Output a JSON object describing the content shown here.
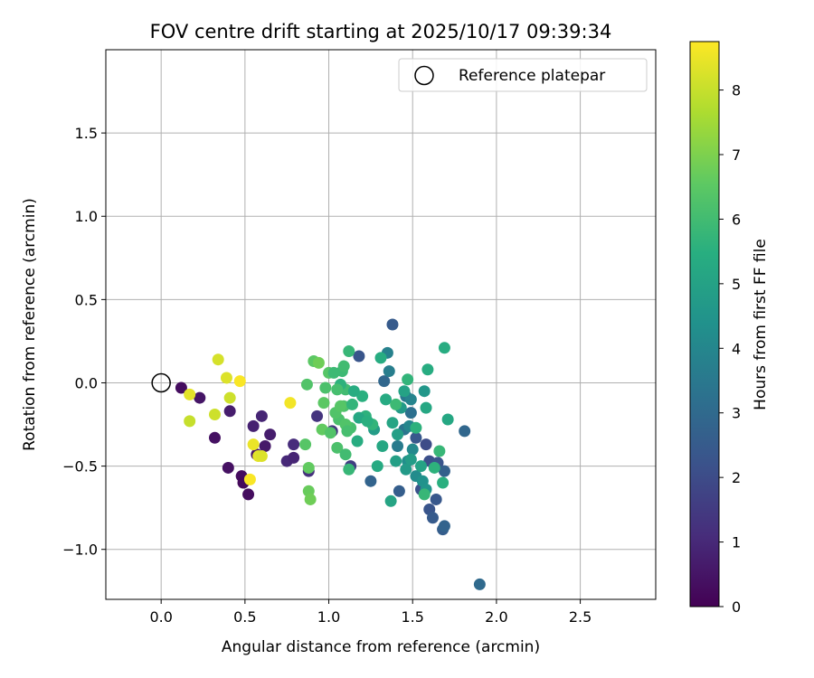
{
  "chart_data": {
    "type": "scatter",
    "title": "FOV centre drift starting at 2025/10/17 09:39:34",
    "xlabel": "Angular distance from reference (arcmin)",
    "ylabel": "Rotation from reference (arcmin)",
    "xlim": [
      -0.33,
      2.95
    ],
    "ylim": [
      -1.3,
      2.0
    ],
    "x_ticks": [
      0.0,
      0.5,
      1.0,
      1.5,
      2.0,
      2.5
    ],
    "x_tick_labels": [
      "0.0",
      "0.5",
      "1.0",
      "1.5",
      "2.0",
      "2.5"
    ],
    "y_ticks": [
      -1.0,
      -0.5,
      0.0,
      0.5,
      1.0,
      1.5
    ],
    "y_tick_labels": [
      "−1.0",
      "−0.5",
      "0.0",
      "0.5",
      "1.0",
      "1.5"
    ],
    "grid": true,
    "legend": {
      "position": "top-right",
      "entries": [
        "Reference platepar"
      ]
    },
    "reference_point": {
      "x": 0.0,
      "y": 0.0,
      "label": "Reference platepar"
    },
    "colorbar": {
      "label": "Hours from first FF file",
      "range": [
        0,
        8.75
      ],
      "ticks": [
        0,
        1,
        2,
        3,
        4,
        5,
        6,
        7,
        8
      ],
      "tick_labels": [
        "0",
        "1",
        "2",
        "3",
        "4",
        "5",
        "6",
        "7",
        "8"
      ],
      "colormap": "viridis"
    },
    "colormap_stops": [
      "#440154",
      "#472d7b",
      "#3b528b",
      "#2c728e",
      "#21918c",
      "#28ae80",
      "#5ec962",
      "#addc30",
      "#fde725"
    ],
    "points": [
      {
        "x": 0.12,
        "y": -0.03,
        "h": 0.3
      },
      {
        "x": 0.23,
        "y": -0.09,
        "h": 0.5
      },
      {
        "x": 0.41,
        "y": -0.17,
        "h": 0.7
      },
      {
        "x": 0.32,
        "y": -0.33,
        "h": 0.4
      },
      {
        "x": 0.55,
        "y": -0.26,
        "h": 0.8
      },
      {
        "x": 0.6,
        "y": -0.2,
        "h": 0.9
      },
      {
        "x": 0.65,
        "y": -0.31,
        "h": 0.7
      },
      {
        "x": 0.62,
        "y": -0.38,
        "h": 0.6
      },
      {
        "x": 0.57,
        "y": -0.43,
        "h": 0.5
      },
      {
        "x": 0.4,
        "y": -0.51,
        "h": 0.4
      },
      {
        "x": 0.48,
        "y": -0.56,
        "h": 0.3
      },
      {
        "x": 0.49,
        "y": -0.6,
        "h": 0.2
      },
      {
        "x": 0.52,
        "y": -0.67,
        "h": 0.3
      },
      {
        "x": 0.75,
        "y": -0.47,
        "h": 1.0
      },
      {
        "x": 0.79,
        "y": -0.45,
        "h": 0.9
      },
      {
        "x": 0.79,
        "y": -0.37,
        "h": 1.1
      },
      {
        "x": 0.88,
        "y": -0.53,
        "h": 1.2
      },
      {
        "x": 0.93,
        "y": -0.2,
        "h": 1.3
      },
      {
        "x": 1.02,
        "y": -0.29,
        "h": 1.4
      },
      {
        "x": 1.13,
        "y": -0.5,
        "h": 1.6
      },
      {
        "x": 1.18,
        "y": 0.16,
        "h": 2.3
      },
      {
        "x": 1.25,
        "y": -0.59,
        "h": 2.8
      },
      {
        "x": 1.38,
        "y": 0.35,
        "h": 2.5
      },
      {
        "x": 1.33,
        "y": 0.01,
        "h": 2.9
      },
      {
        "x": 1.42,
        "y": -0.65,
        "h": 2.6
      },
      {
        "x": 1.52,
        "y": -0.33,
        "h": 2.4
      },
      {
        "x": 1.55,
        "y": -0.64,
        "h": 2.2
      },
      {
        "x": 1.58,
        "y": -0.37,
        "h": 2.0
      },
      {
        "x": 1.6,
        "y": -0.47,
        "h": 2.1
      },
      {
        "x": 1.6,
        "y": -0.76,
        "h": 2.3
      },
      {
        "x": 1.62,
        "y": -0.81,
        "h": 2.5
      },
      {
        "x": 1.64,
        "y": -0.7,
        "h": 2.4
      },
      {
        "x": 1.65,
        "y": -0.48,
        "h": 2.3
      },
      {
        "x": 1.68,
        "y": -0.88,
        "h": 2.6
      },
      {
        "x": 1.69,
        "y": -0.86,
        "h": 2.8
      },
      {
        "x": 1.69,
        "y": -0.53,
        "h": 2.7
      },
      {
        "x": 1.81,
        "y": -0.29,
        "h": 2.9
      },
      {
        "x": 1.9,
        "y": -1.21,
        "h": 3.0
      },
      {
        "x": 1.49,
        "y": -0.18,
        "h": 3.2
      },
      {
        "x": 1.45,
        "y": -0.28,
        "h": 3.4
      },
      {
        "x": 1.46,
        "y": -0.08,
        "h": 3.5
      },
      {
        "x": 1.41,
        "y": -0.38,
        "h": 3.6
      },
      {
        "x": 1.36,
        "y": 0.07,
        "h": 3.7
      },
      {
        "x": 1.35,
        "y": 0.18,
        "h": 3.8
      },
      {
        "x": 1.49,
        "y": -0.1,
        "h": 3.9
      },
      {
        "x": 1.48,
        "y": -0.26,
        "h": 4.0
      },
      {
        "x": 1.5,
        "y": -0.4,
        "h": 4.1
      },
      {
        "x": 1.52,
        "y": -0.56,
        "h": 4.2
      },
      {
        "x": 1.47,
        "y": -0.47,
        "h": 4.3
      },
      {
        "x": 1.56,
        "y": -0.59,
        "h": 4.4
      },
      {
        "x": 1.58,
        "y": -0.64,
        "h": 4.5
      },
      {
        "x": 1.57,
        "y": -0.05,
        "h": 4.6
      },
      {
        "x": 1.43,
        "y": -0.15,
        "h": 4.7
      },
      {
        "x": 1.27,
        "y": -0.28,
        "h": 4.8
      },
      {
        "x": 1.4,
        "y": -0.47,
        "h": 4.9
      },
      {
        "x": 1.45,
        "y": -0.05,
        "h": 5.0
      },
      {
        "x": 1.37,
        "y": -0.71,
        "h": 5.1
      },
      {
        "x": 1.32,
        "y": -0.38,
        "h": 5.2
      },
      {
        "x": 1.29,
        "y": -0.5,
        "h": 5.3
      },
      {
        "x": 1.17,
        "y": -0.35,
        "h": 5.4
      },
      {
        "x": 1.2,
        "y": -0.08,
        "h": 5.5
      },
      {
        "x": 1.22,
        "y": -0.2,
        "h": 5.6
      },
      {
        "x": 1.26,
        "y": -0.25,
        "h": 5.7
      },
      {
        "x": 1.12,
        "y": 0.19,
        "h": 5.8
      },
      {
        "x": 1.08,
        "y": 0.07,
        "h": 5.9
      },
      {
        "x": 1.1,
        "y": -0.04,
        "h": 6.0
      },
      {
        "x": 1.13,
        "y": -0.27,
        "h": 6.1
      },
      {
        "x": 1.06,
        "y": -0.22,
        "h": 6.2
      },
      {
        "x": 1.04,
        "y": -0.18,
        "h": 6.3
      },
      {
        "x": 1.0,
        "y": 0.06,
        "h": 6.4
      },
      {
        "x": 0.97,
        "y": -0.12,
        "h": 6.5
      },
      {
        "x": 0.96,
        "y": -0.28,
        "h": 6.6
      },
      {
        "x": 0.88,
        "y": -0.65,
        "h": 6.7
      },
      {
        "x": 0.89,
        "y": -0.7,
        "h": 6.8
      },
      {
        "x": 0.88,
        "y": -0.51,
        "h": 6.6
      },
      {
        "x": 0.86,
        "y": -0.37,
        "h": 6.4
      },
      {
        "x": 1.05,
        "y": -0.39,
        "h": 6.2
      },
      {
        "x": 1.1,
        "y": -0.43,
        "h": 6.0
      },
      {
        "x": 1.12,
        "y": -0.52,
        "h": 5.8
      },
      {
        "x": 1.07,
        "y": -0.01,
        "h": 5.6
      },
      {
        "x": 1.15,
        "y": -0.05,
        "h": 5.4
      },
      {
        "x": 1.18,
        "y": -0.21,
        "h": 5.2
      },
      {
        "x": 1.03,
        "y": 0.06,
        "h": 5.9
      },
      {
        "x": 1.05,
        "y": -0.04,
        "h": 6.1
      },
      {
        "x": 1.09,
        "y": -0.14,
        "h": 6.2
      },
      {
        "x": 1.1,
        "y": -0.25,
        "h": 6.3
      },
      {
        "x": 1.14,
        "y": -0.13,
        "h": 5.7
      },
      {
        "x": 1.23,
        "y": -0.23,
        "h": 5.5
      },
      {
        "x": 1.31,
        "y": 0.15,
        "h": 5.4
      },
      {
        "x": 1.34,
        "y": -0.1,
        "h": 5.3
      },
      {
        "x": 1.38,
        "y": -0.24,
        "h": 5.1
      },
      {
        "x": 1.41,
        "y": -0.31,
        "h": 4.9
      },
      {
        "x": 1.46,
        "y": -0.52,
        "h": 4.7
      },
      {
        "x": 1.49,
        "y": -0.46,
        "h": 4.8
      },
      {
        "x": 1.55,
        "y": -0.5,
        "h": 5.0
      },
      {
        "x": 1.58,
        "y": -0.15,
        "h": 5.2
      },
      {
        "x": 1.59,
        "y": 0.08,
        "h": 5.4
      },
      {
        "x": 1.63,
        "y": -0.51,
        "h": 5.6
      },
      {
        "x": 1.66,
        "y": -0.41,
        "h": 5.8
      },
      {
        "x": 1.68,
        "y": -0.6,
        "h": 5.5
      },
      {
        "x": 1.69,
        "y": 0.21,
        "h": 5.4
      },
      {
        "x": 1.71,
        "y": -0.22,
        "h": 5.2
      },
      {
        "x": 1.47,
        "y": 0.02,
        "h": 5.7
      },
      {
        "x": 1.4,
        "y": -0.13,
        "h": 5.9
      },
      {
        "x": 1.52,
        "y": -0.27,
        "h": 5.6
      },
      {
        "x": 1.57,
        "y": -0.67,
        "h": 5.8
      },
      {
        "x": 1.09,
        "y": 0.1,
        "h": 6.0
      },
      {
        "x": 0.98,
        "y": -0.03,
        "h": 6.2
      },
      {
        "x": 1.07,
        "y": -0.14,
        "h": 6.4
      },
      {
        "x": 0.87,
        "y": -0.01,
        "h": 6.3
      },
      {
        "x": 0.91,
        "y": 0.13,
        "h": 6.5
      },
      {
        "x": 0.94,
        "y": 0.12,
        "h": 6.8
      },
      {
        "x": 1.01,
        "y": -0.3,
        "h": 6.3
      },
      {
        "x": 1.11,
        "y": -0.29,
        "h": 6.1
      },
      {
        "x": 0.77,
        "y": -0.12,
        "h": 8.6
      },
      {
        "x": 0.34,
        "y": 0.14,
        "h": 8.2
      },
      {
        "x": 0.39,
        "y": 0.03,
        "h": 8.3
      },
      {
        "x": 0.47,
        "y": 0.01,
        "h": 8.7
      },
      {
        "x": 0.41,
        "y": -0.09,
        "h": 8.1
      },
      {
        "x": 0.17,
        "y": -0.07,
        "h": 8.4
      },
      {
        "x": 0.17,
        "y": -0.23,
        "h": 8.0
      },
      {
        "x": 0.32,
        "y": -0.19,
        "h": 8.1
      },
      {
        "x": 0.55,
        "y": -0.37,
        "h": 8.5
      },
      {
        "x": 0.58,
        "y": -0.44,
        "h": 8.4
      },
      {
        "x": 0.53,
        "y": -0.58,
        "h": 8.7
      },
      {
        "x": 0.6,
        "y": -0.44,
        "h": 8.3
      }
    ]
  }
}
